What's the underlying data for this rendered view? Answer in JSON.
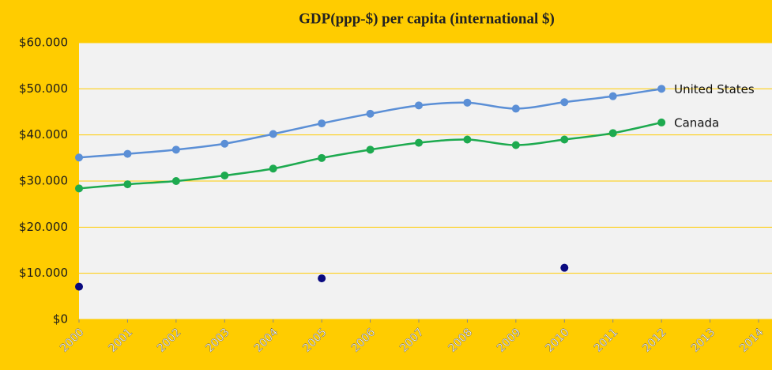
{
  "chart_data": {
    "type": "line",
    "title": "GDP(ppp-$) per capita (international  $)",
    "x": [
      2000,
      2001,
      2002,
      2003,
      2004,
      2005,
      2006,
      2007,
      2008,
      2009,
      2010,
      2011,
      2012
    ],
    "series": [
      {
        "name": "United States",
        "color": "#5B8FD6",
        "mode": "lines+markers",
        "values": [
          35100,
          35900,
          36800,
          38100,
          40200,
          42500,
          44600,
          46400,
          47000,
          45700,
          47100,
          48400,
          50000
        ]
      },
      {
        "name": "Canada",
        "color": "#1DAA4F",
        "mode": "lines+markers",
        "values": [
          28400,
          29300,
          30000,
          31200,
          32700,
          35000,
          36800,
          38300,
          39000,
          37800,
          39000,
          40400,
          42700
        ]
      },
      {
        "color": "#0A0A80",
        "mode": "markers",
        "values": [
          7100,
          null,
          null,
          null,
          null,
          8900,
          null,
          null,
          null,
          null,
          11200,
          null,
          null
        ]
      }
    ],
    "xlim": [
      2000,
      2014
    ],
    "xticks": [
      2000,
      2001,
      2002,
      2003,
      2004,
      2005,
      2006,
      2007,
      2008,
      2009,
      2010,
      2011,
      2012,
      2013,
      2014
    ],
    "ylim": [
      0,
      60000
    ],
    "yticks": [
      {
        "value": 0,
        "label": "$0"
      },
      {
        "value": 10000,
        "label": "$10.000"
      },
      {
        "value": 20000,
        "label": "$20.000"
      },
      {
        "value": 30000,
        "label": "$30.000"
      },
      {
        "value": 40000,
        "label": "$40.000"
      },
      {
        "value": 50000,
        "label": "$50.000"
      },
      {
        "value": 60000,
        "label": "$60.000"
      }
    ],
    "grid": true
  }
}
